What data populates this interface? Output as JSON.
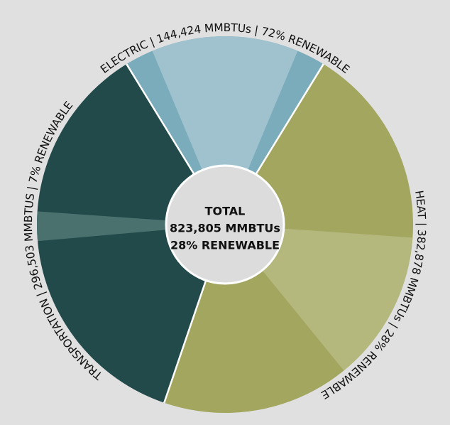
{
  "chart_data": {
    "type": "pie",
    "center_text": [
      "TOTAL",
      "823,805 MMBTUs",
      "28% RENEWABLE"
    ],
    "slices": [
      {
        "label": "ELECTRIC | 144,424 MMBTUs | 72% RENEWABLE",
        "value": 144424,
        "renewable_pct": 72,
        "color": "#7aacbb",
        "renewable_color": "#9fc2ce"
      },
      {
        "label": "HEAT | 382,878 MMBTUs | 28% RENEWABLE",
        "value": 382878,
        "renewable_pct": 28,
        "color": "#a2a65f",
        "renewable_color": "#b5b87d"
      },
      {
        "label": "TRANSPORTATION | 296,503 MMBTUS | 7% RENEWABLE",
        "value": 296503,
        "renewable_pct": 7,
        "color": "#224a4a",
        "renewable_color": "#4b716f"
      }
    ]
  }
}
